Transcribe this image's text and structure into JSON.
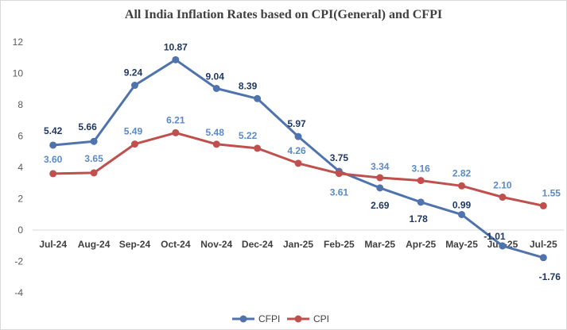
{
  "chart_data": {
    "type": "line",
    "title": "All India Inflation Rates based on CPI(General) and CFPI",
    "xlabel": "",
    "ylabel": "",
    "ylim": [
      -4,
      12
    ],
    "yticks": [
      -4,
      -2,
      0,
      2,
      4,
      6,
      8,
      10,
      12
    ],
    "ytick_labels": [
      "-4",
      "-2",
      "0",
      "2",
      "4",
      "6",
      "8",
      "10",
      "12"
    ],
    "grid": false,
    "legend_position": "bottom",
    "categories": [
      "Jul-24",
      "Aug-24",
      "Sep-24",
      "Oct-24",
      "Nov-24",
      "Dec-24",
      "Jan-25",
      "Feb-25",
      "Mar-25",
      "Apr-25",
      "May-25",
      "Jun-25",
      "Jul-25"
    ],
    "series": [
      {
        "name": "CFPI",
        "color": "#4f73ad",
        "values": [
          5.42,
          5.66,
          9.24,
          10.87,
          9.04,
          8.39,
          5.97,
          3.75,
          2.69,
          1.78,
          0.99,
          -1.01,
          -1.76
        ],
        "labels": [
          "5.42",
          "5.66",
          "9.24",
          "10.87",
          "9.04",
          "8.39",
          "5.97",
          "3.75",
          "2.69",
          "1.78",
          "0.99",
          "-1.01",
          "-1.76"
        ]
      },
      {
        "name": "CPI",
        "color": "#c0504d",
        "values": [
          3.6,
          3.65,
          5.49,
          6.21,
          5.48,
          5.22,
          4.26,
          3.61,
          3.34,
          3.16,
          2.82,
          2.1,
          1.55
        ],
        "labels": [
          "3.60",
          "3.65",
          "5.49",
          "6.21",
          "5.48",
          "5.22",
          "4.26",
          "3.61",
          "3.34",
          "3.16",
          "2.82",
          "2.10",
          "1.55"
        ]
      }
    ]
  }
}
